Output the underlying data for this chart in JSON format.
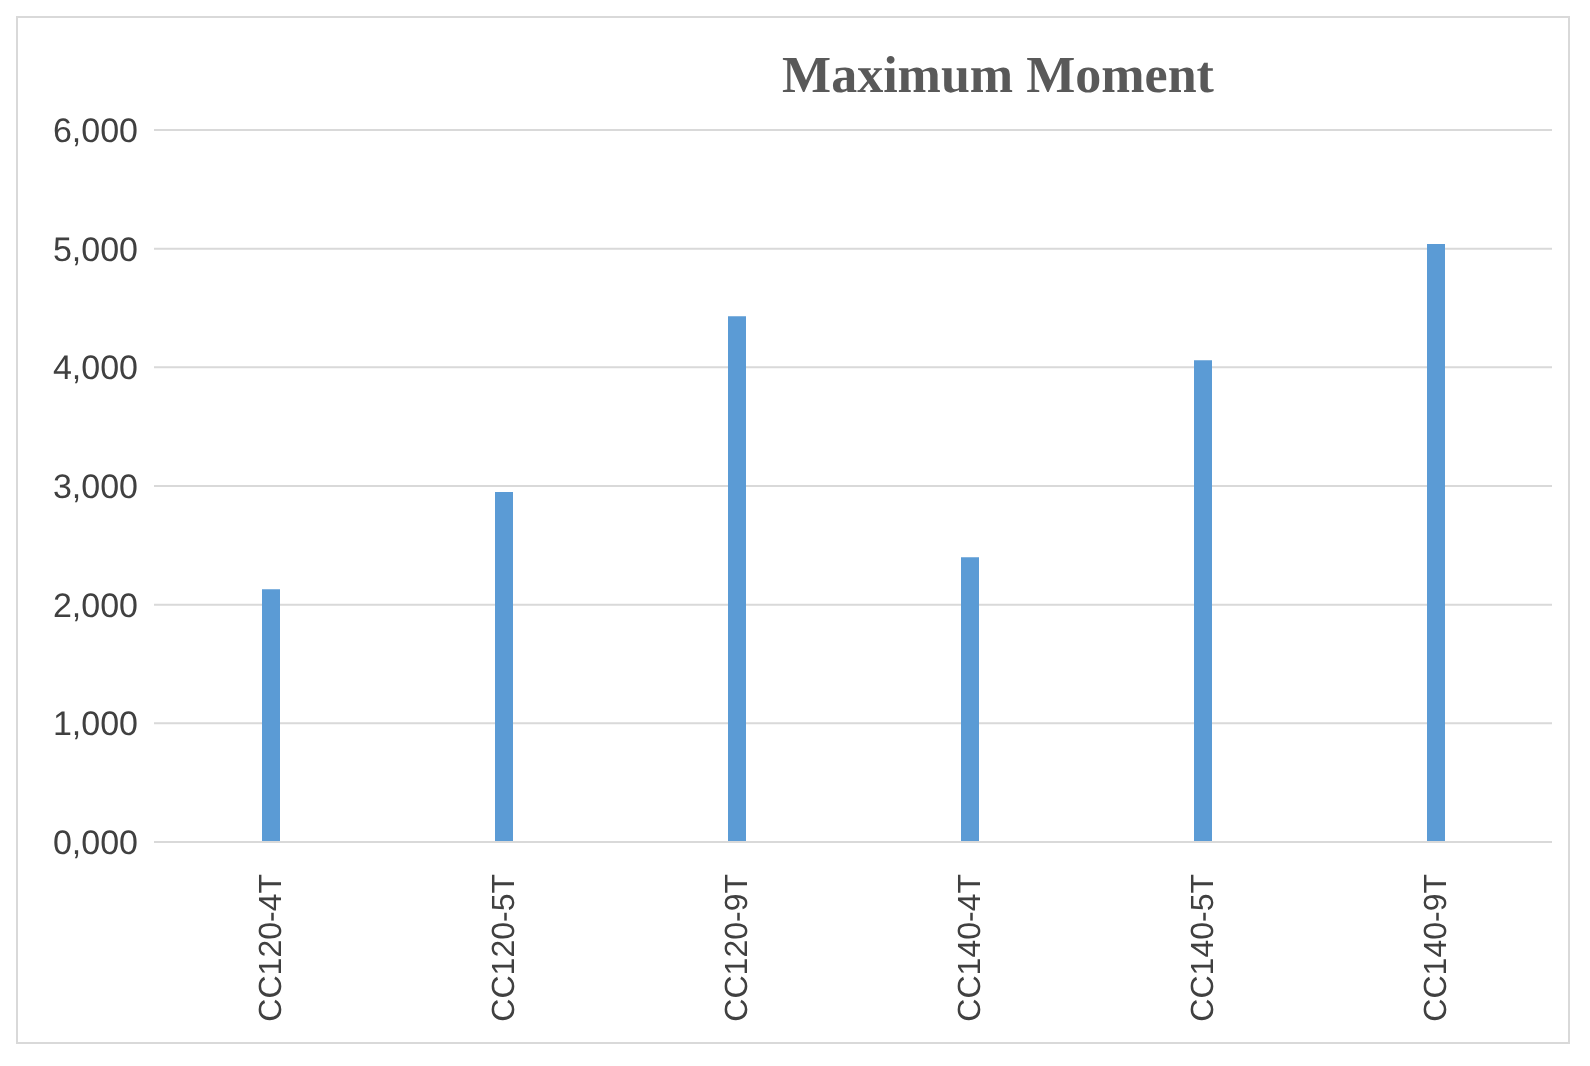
{
  "chart_data": {
    "type": "bar",
    "title": "Maximum Moment",
    "categories": [
      "CC120-4T",
      "CC120-5T",
      "CC120-9T",
      "CC140-4T",
      "CC140-5T",
      "CC140-9T"
    ],
    "values": [
      2130,
      2950,
      4430,
      2400,
      4060,
      5040
    ],
    "color": "#5b9bd5",
    "ylim": [
      0,
      6000
    ],
    "yticks": [
      {
        "value": 0,
        "label": "0,000"
      },
      {
        "value": 1000,
        "label": "1,000"
      },
      {
        "value": 2000,
        "label": "2,000"
      },
      {
        "value": 3000,
        "label": "3,000"
      },
      {
        "value": 4000,
        "label": "4,000"
      },
      {
        "value": 5000,
        "label": "5,000"
      },
      {
        "value": 6000,
        "label": "6,000"
      }
    ],
    "grid": "y"
  }
}
